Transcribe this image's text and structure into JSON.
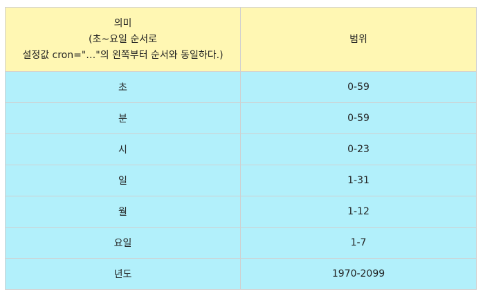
{
  "table": {
    "header": {
      "meaning_lines": [
        "의미",
        "(초~요일 순서로",
        "설정값 cron=\"…\"의 왼쪽부터 순서와 동일하다.)"
      ],
      "range": "범위"
    },
    "rows": [
      {
        "meaning": "초",
        "range": "0-59"
      },
      {
        "meaning": "분",
        "range": "0-59"
      },
      {
        "meaning": "시",
        "range": "0-23"
      },
      {
        "meaning": "일",
        "range": "1-31"
      },
      {
        "meaning": "월",
        "range": "1-12"
      },
      {
        "meaning": "요일",
        "range": "1-7"
      },
      {
        "meaning": "년도",
        "range": "1970-2099"
      }
    ]
  },
  "colors": {
    "header_bg": "#fff7b3",
    "row_bg": "#b2f0fb",
    "border": "#d0d0d0"
  }
}
